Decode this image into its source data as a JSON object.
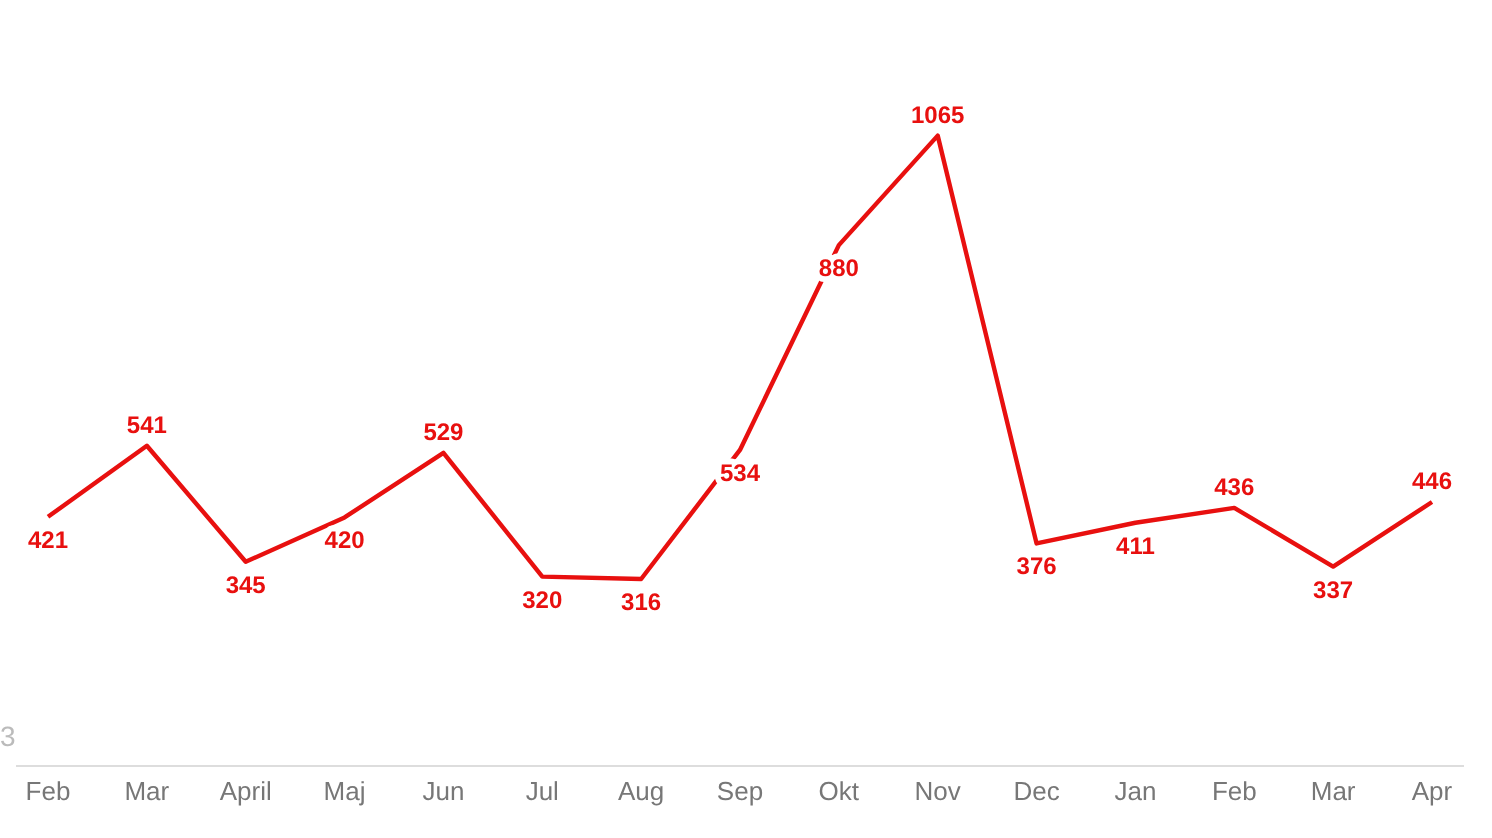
{
  "chart_data": {
    "type": "line",
    "categories": [
      "Feb",
      "Mar",
      "April",
      "Maj",
      "Jun",
      "Jul",
      "Aug",
      "Sep",
      "Okt",
      "Nov",
      "Dec",
      "Jan",
      "Feb",
      "Mar",
      "Apr"
    ],
    "series": [
      {
        "color": "#e8100f",
        "values": [
          421,
          541,
          345,
          420,
          529,
          320,
          316,
          534,
          880,
          1065,
          376,
          411,
          436,
          337,
          446
        ]
      }
    ],
    "data_labels": true,
    "marker": "none",
    "line_style": "solid",
    "tick_labels": "x",
    "annotations": [
      "3"
    ]
  }
}
